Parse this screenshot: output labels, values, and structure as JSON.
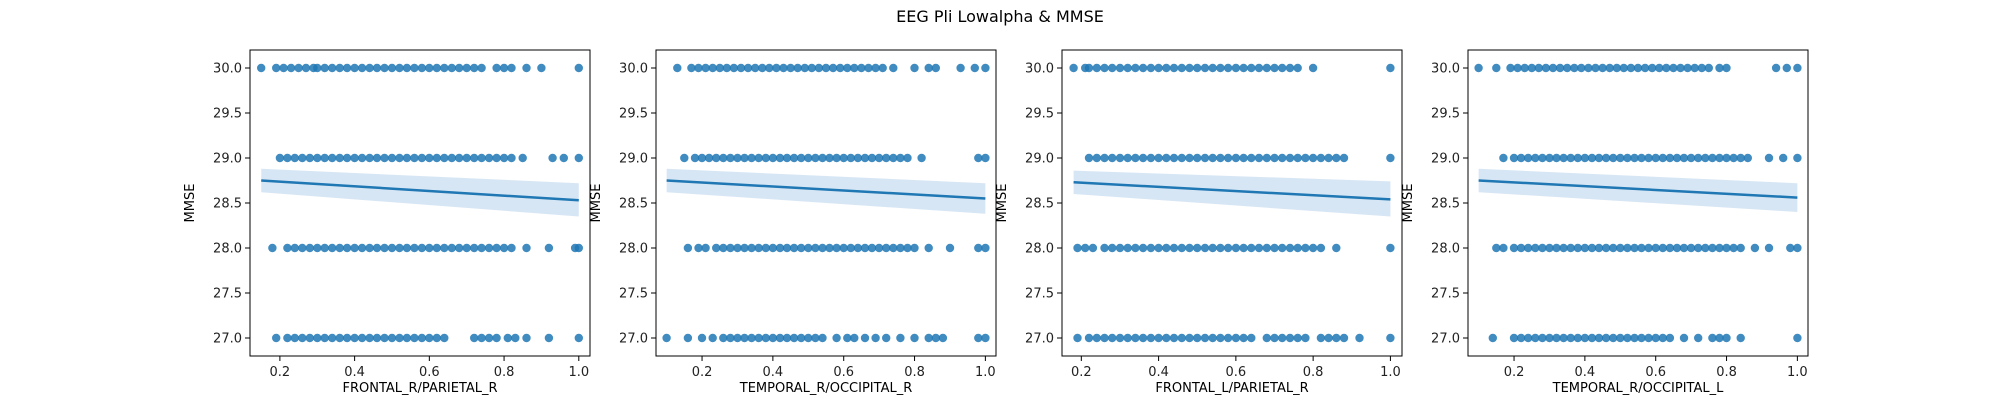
{
  "figure": {
    "title": "EEG Pli Lowalpha & MMSE"
  },
  "colors": {
    "point": "#1f77b4",
    "line": "#1f77b4",
    "band": "#c6dbef"
  },
  "chart_data": [
    {
      "type": "scatter",
      "title": "",
      "xlabel": "FRONTAL_R/PARIETAL_R",
      "ylabel": "MMSE",
      "xlim": [
        0.12,
        1.03
      ],
      "ylim": [
        26.8,
        30.2
      ],
      "xticks": [
        "0.2",
        "0.4",
        "0.6",
        "0.8",
        "1.0"
      ],
      "yticks": [
        "27.0",
        "27.5",
        "28.0",
        "28.5",
        "29.0",
        "29.5",
        "30.0"
      ],
      "regression": {
        "x": [
          0.15,
          1.0
        ],
        "y": [
          28.75,
          28.53
        ],
        "ci_low": [
          28.62,
          28.35
        ],
        "ci_high": [
          28.88,
          28.72
        ]
      },
      "rows": [
        {
          "y": 30,
          "x": [
            0.15,
            0.19,
            0.21,
            0.23,
            0.25,
            0.27,
            0.29,
            0.3,
            0.32,
            0.34,
            0.36,
            0.38,
            0.4,
            0.42,
            0.44,
            0.46,
            0.48,
            0.5,
            0.52,
            0.54,
            0.56,
            0.58,
            0.6,
            0.62,
            0.64,
            0.66,
            0.68,
            0.7,
            0.72,
            0.74,
            0.78,
            0.8,
            0.82,
            0.86,
            0.9,
            1.0
          ]
        },
        {
          "y": 29,
          "x": [
            0.2,
            0.22,
            0.24,
            0.26,
            0.28,
            0.3,
            0.32,
            0.34,
            0.36,
            0.38,
            0.4,
            0.42,
            0.44,
            0.46,
            0.48,
            0.5,
            0.52,
            0.54,
            0.56,
            0.58,
            0.6,
            0.62,
            0.64,
            0.66,
            0.68,
            0.7,
            0.72,
            0.74,
            0.76,
            0.78,
            0.8,
            0.82,
            0.85,
            0.93,
            0.96,
            1.0
          ]
        },
        {
          "y": 28,
          "x": [
            0.18,
            0.22,
            0.24,
            0.26,
            0.28,
            0.3,
            0.32,
            0.34,
            0.36,
            0.38,
            0.4,
            0.42,
            0.44,
            0.46,
            0.48,
            0.5,
            0.52,
            0.54,
            0.56,
            0.58,
            0.6,
            0.62,
            0.64,
            0.66,
            0.68,
            0.7,
            0.72,
            0.74,
            0.76,
            0.78,
            0.8,
            0.82,
            0.86,
            0.92,
            0.99,
            1.0
          ]
        },
        {
          "y": 27,
          "x": [
            0.19,
            0.22,
            0.24,
            0.26,
            0.28,
            0.3,
            0.32,
            0.34,
            0.36,
            0.38,
            0.4,
            0.42,
            0.44,
            0.46,
            0.48,
            0.5,
            0.52,
            0.54,
            0.56,
            0.58,
            0.6,
            0.62,
            0.64,
            0.72,
            0.74,
            0.76,
            0.78,
            0.81,
            0.83,
            0.86,
            0.92,
            1.0
          ]
        }
      ]
    },
    {
      "type": "scatter",
      "title": "",
      "xlabel": "TEMPORAL_R/OCCIPITAL_R",
      "ylabel": "MMSE",
      "xlim": [
        0.07,
        1.03
      ],
      "ylim": [
        26.8,
        30.2
      ],
      "xticks": [
        "0.2",
        "0.4",
        "0.6",
        "0.8",
        "1.0"
      ],
      "yticks": [
        "27.0",
        "27.5",
        "28.0",
        "28.5",
        "29.0",
        "29.5",
        "30.0"
      ],
      "regression": {
        "x": [
          0.1,
          1.0
        ],
        "y": [
          28.75,
          28.55
        ],
        "ci_low": [
          28.62,
          28.38
        ],
        "ci_high": [
          28.88,
          28.72
        ]
      },
      "rows": [
        {
          "y": 30,
          "x": [
            0.13,
            0.17,
            0.19,
            0.21,
            0.23,
            0.25,
            0.27,
            0.29,
            0.31,
            0.33,
            0.35,
            0.37,
            0.39,
            0.41,
            0.43,
            0.45,
            0.47,
            0.49,
            0.51,
            0.53,
            0.55,
            0.57,
            0.59,
            0.61,
            0.63,
            0.65,
            0.67,
            0.69,
            0.71,
            0.74,
            0.8,
            0.84,
            0.86,
            0.93,
            0.97,
            1.0
          ]
        },
        {
          "y": 29,
          "x": [
            0.15,
            0.18,
            0.2,
            0.22,
            0.24,
            0.26,
            0.28,
            0.3,
            0.32,
            0.34,
            0.36,
            0.38,
            0.4,
            0.42,
            0.44,
            0.46,
            0.48,
            0.5,
            0.52,
            0.54,
            0.56,
            0.58,
            0.6,
            0.62,
            0.64,
            0.66,
            0.68,
            0.7,
            0.72,
            0.74,
            0.76,
            0.78,
            0.82,
            0.98,
            1.0
          ]
        },
        {
          "y": 28,
          "x": [
            0.16,
            0.19,
            0.21,
            0.24,
            0.26,
            0.28,
            0.3,
            0.32,
            0.34,
            0.36,
            0.38,
            0.4,
            0.42,
            0.44,
            0.46,
            0.48,
            0.5,
            0.52,
            0.54,
            0.56,
            0.58,
            0.6,
            0.62,
            0.64,
            0.66,
            0.68,
            0.7,
            0.72,
            0.74,
            0.76,
            0.78,
            0.8,
            0.84,
            0.9,
            0.98,
            1.0
          ]
        },
        {
          "y": 27,
          "x": [
            0.1,
            0.16,
            0.2,
            0.23,
            0.26,
            0.28,
            0.3,
            0.32,
            0.34,
            0.36,
            0.38,
            0.4,
            0.42,
            0.44,
            0.46,
            0.48,
            0.5,
            0.52,
            0.54,
            0.58,
            0.61,
            0.63,
            0.66,
            0.69,
            0.72,
            0.76,
            0.8,
            0.84,
            0.86,
            0.88,
            0.98,
            1.0
          ]
        }
      ]
    },
    {
      "type": "scatter",
      "title": "",
      "xlabel": "FRONTAL_L/PARIETAL_R",
      "ylabel": "MMSE",
      "xlim": [
        0.15,
        1.03
      ],
      "ylim": [
        26.8,
        30.2
      ],
      "xticks": [
        "0.2",
        "0.4",
        "0.6",
        "0.8",
        "1.0"
      ],
      "yticks": [
        "27.0",
        "27.5",
        "28.0",
        "28.5",
        "29.0",
        "29.5",
        "30.0"
      ],
      "regression": {
        "x": [
          0.18,
          1.0
        ],
        "y": [
          28.73,
          28.54
        ],
        "ci_low": [
          28.6,
          28.35
        ],
        "ci_high": [
          28.86,
          28.74
        ]
      },
      "rows": [
        {
          "y": 30,
          "x": [
            0.18,
            0.21,
            0.22,
            0.24,
            0.26,
            0.28,
            0.3,
            0.32,
            0.34,
            0.36,
            0.38,
            0.4,
            0.42,
            0.44,
            0.46,
            0.48,
            0.5,
            0.52,
            0.54,
            0.56,
            0.58,
            0.6,
            0.62,
            0.64,
            0.66,
            0.68,
            0.7,
            0.72,
            0.74,
            0.76,
            0.8,
            1.0
          ]
        },
        {
          "y": 29,
          "x": [
            0.22,
            0.24,
            0.26,
            0.28,
            0.3,
            0.32,
            0.34,
            0.36,
            0.38,
            0.4,
            0.42,
            0.44,
            0.46,
            0.48,
            0.5,
            0.52,
            0.54,
            0.56,
            0.58,
            0.6,
            0.62,
            0.64,
            0.66,
            0.68,
            0.7,
            0.72,
            0.74,
            0.76,
            0.78,
            0.8,
            0.82,
            0.84,
            0.86,
            0.88,
            1.0
          ]
        },
        {
          "y": 28,
          "x": [
            0.19,
            0.21,
            0.23,
            0.26,
            0.28,
            0.3,
            0.32,
            0.34,
            0.36,
            0.38,
            0.4,
            0.42,
            0.44,
            0.46,
            0.48,
            0.5,
            0.52,
            0.54,
            0.56,
            0.58,
            0.6,
            0.62,
            0.64,
            0.66,
            0.68,
            0.7,
            0.72,
            0.74,
            0.76,
            0.78,
            0.8,
            0.82,
            0.86,
            1.0
          ]
        },
        {
          "y": 27,
          "x": [
            0.19,
            0.22,
            0.24,
            0.26,
            0.28,
            0.3,
            0.32,
            0.34,
            0.36,
            0.38,
            0.4,
            0.42,
            0.44,
            0.46,
            0.48,
            0.5,
            0.52,
            0.54,
            0.56,
            0.58,
            0.6,
            0.62,
            0.64,
            0.68,
            0.7,
            0.72,
            0.74,
            0.76,
            0.78,
            0.82,
            0.84,
            0.86,
            0.88,
            0.92,
            1.0
          ]
        }
      ]
    },
    {
      "type": "scatter",
      "title": "",
      "xlabel": "TEMPORAL_R/OCCIPITAL_L",
      "ylabel": "MMSE",
      "xlim": [
        0.07,
        1.03
      ],
      "ylim": [
        26.8,
        30.2
      ],
      "xticks": [
        "0.2",
        "0.4",
        "0.6",
        "0.8",
        "1.0"
      ],
      "yticks": [
        "27.0",
        "27.5",
        "28.0",
        "28.5",
        "29.0",
        "29.5",
        "30.0"
      ],
      "regression": {
        "x": [
          0.1,
          1.0
        ],
        "y": [
          28.75,
          28.56
        ],
        "ci_low": [
          28.62,
          28.4
        ],
        "ci_high": [
          28.88,
          28.72
        ]
      },
      "rows": [
        {
          "y": 30,
          "x": [
            0.1,
            0.15,
            0.19,
            0.21,
            0.23,
            0.25,
            0.27,
            0.29,
            0.31,
            0.33,
            0.35,
            0.37,
            0.39,
            0.41,
            0.43,
            0.45,
            0.47,
            0.49,
            0.51,
            0.53,
            0.55,
            0.57,
            0.59,
            0.61,
            0.63,
            0.65,
            0.67,
            0.69,
            0.71,
            0.73,
            0.75,
            0.78,
            0.8,
            0.94,
            0.97,
            1.0
          ]
        },
        {
          "y": 29,
          "x": [
            0.17,
            0.2,
            0.22,
            0.24,
            0.26,
            0.28,
            0.3,
            0.32,
            0.34,
            0.36,
            0.38,
            0.4,
            0.42,
            0.44,
            0.46,
            0.48,
            0.5,
            0.52,
            0.54,
            0.56,
            0.58,
            0.6,
            0.62,
            0.64,
            0.66,
            0.68,
            0.7,
            0.72,
            0.74,
            0.76,
            0.78,
            0.8,
            0.82,
            0.84,
            0.86,
            0.92,
            0.96,
            1.0
          ]
        },
        {
          "y": 28,
          "x": [
            0.15,
            0.17,
            0.2,
            0.22,
            0.24,
            0.26,
            0.28,
            0.3,
            0.32,
            0.34,
            0.36,
            0.38,
            0.4,
            0.42,
            0.44,
            0.46,
            0.48,
            0.5,
            0.52,
            0.54,
            0.56,
            0.58,
            0.6,
            0.62,
            0.64,
            0.66,
            0.68,
            0.7,
            0.72,
            0.74,
            0.76,
            0.78,
            0.8,
            0.82,
            0.84,
            0.88,
            0.92,
            0.98,
            1.0
          ]
        },
        {
          "y": 27,
          "x": [
            0.14,
            0.2,
            0.22,
            0.24,
            0.26,
            0.28,
            0.3,
            0.32,
            0.34,
            0.36,
            0.38,
            0.4,
            0.42,
            0.44,
            0.46,
            0.48,
            0.5,
            0.52,
            0.54,
            0.56,
            0.58,
            0.6,
            0.62,
            0.64,
            0.68,
            0.72,
            0.76,
            0.78,
            0.8,
            0.84,
            1.0
          ]
        }
      ]
    }
  ]
}
